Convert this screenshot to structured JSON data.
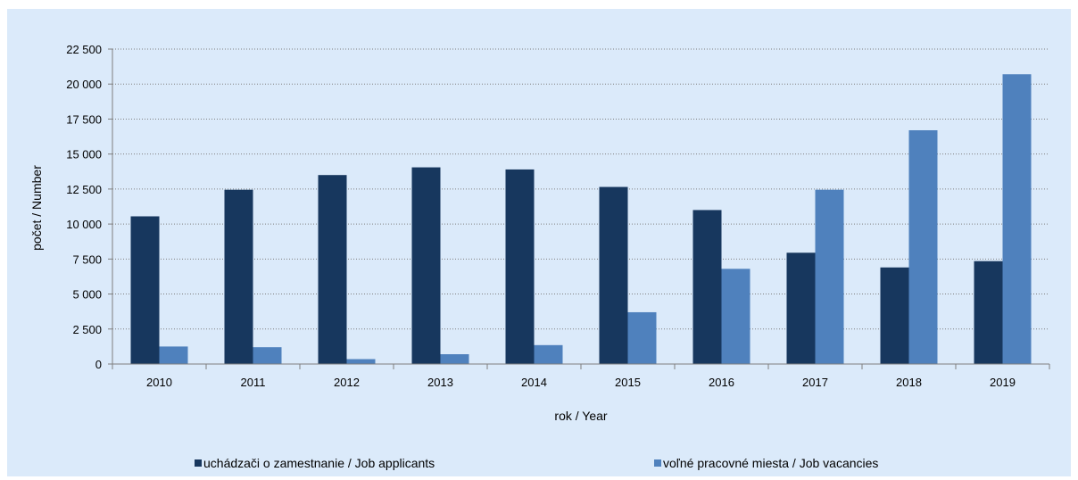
{
  "chart_data": {
    "type": "bar",
    "categories": [
      "2010",
      "2011",
      "2012",
      "2013",
      "2014",
      "2015",
      "2016",
      "2017",
      "2018",
      "2019"
    ],
    "series": [
      {
        "name": "uchádzači o zamestnanie / Job applicants",
        "color": "#17375e",
        "values": [
          10550,
          12450,
          13500,
          14050,
          13900,
          12650,
          11000,
          7950,
          6900,
          7350
        ]
      },
      {
        "name": "voľné pracovné miesta / Job vacancies",
        "color": "#4f81bd",
        "values": [
          1250,
          1200,
          350,
          700,
          1350,
          3700,
          6800,
          12450,
          16700,
          20700
        ]
      }
    ],
    "xlabel": "rok / Year",
    "ylabel": "počet / Number",
    "ylim": [
      0,
      22500
    ],
    "yticks": [
      0,
      2500,
      5000,
      7500,
      10000,
      12500,
      15000,
      17500,
      20000,
      22500
    ],
    "ytick_labels": [
      "0",
      "2 500",
      "5 000",
      "7 500",
      "10 000",
      "12 500",
      "15 000",
      "17 500",
      "20 000",
      "22 500"
    ],
    "grid": "horizontal dotted",
    "legend_position": "bottom"
  }
}
